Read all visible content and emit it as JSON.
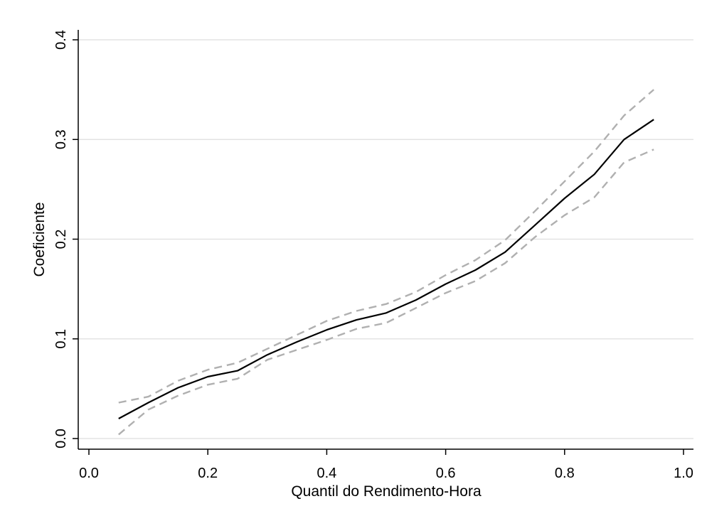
{
  "chart_data": {
    "type": "line",
    "title": "",
    "xlabel": "Quantil do Rendimento-Hora",
    "ylabel": "Coeficiente",
    "xlim": [
      0.0,
      1.0
    ],
    "ylim": [
      0.0,
      0.4
    ],
    "xticks": [
      "0.0",
      "0.2",
      "0.4",
      "0.6",
      "0.8",
      "1.0"
    ],
    "yticks": [
      "0.0",
      "0.1",
      "0.2",
      "0.3",
      "0.4"
    ],
    "grid": "horizontal",
    "legend": "none",
    "x": [
      0.05,
      0.1,
      0.15,
      0.2,
      0.25,
      0.3,
      0.35,
      0.4,
      0.45,
      0.5,
      0.55,
      0.6,
      0.65,
      0.7,
      0.75,
      0.8,
      0.85,
      0.9,
      0.95
    ],
    "series": [
      {
        "role": "estimate",
        "style": "solid",
        "color": "#000000",
        "values": [
          0.02,
          0.036,
          0.051,
          0.062,
          0.068,
          0.084,
          0.097,
          0.109,
          0.119,
          0.126,
          0.139,
          0.155,
          0.169,
          0.187,
          0.214,
          0.241,
          0.265,
          0.3,
          0.32
        ]
      },
      {
        "role": "upper-bound",
        "style": "dashed",
        "color": "#b0b0b0",
        "values": [
          0.036,
          0.042,
          0.058,
          0.069,
          0.076,
          0.09,
          0.104,
          0.118,
          0.128,
          0.135,
          0.147,
          0.164,
          0.179,
          0.199,
          0.228,
          0.258,
          0.288,
          0.324,
          0.35
        ]
      },
      {
        "role": "lower-bound",
        "style": "dashed",
        "color": "#b0b0b0",
        "values": [
          0.004,
          0.029,
          0.043,
          0.054,
          0.06,
          0.079,
          0.089,
          0.099,
          0.11,
          0.116,
          0.131,
          0.146,
          0.158,
          0.176,
          0.202,
          0.224,
          0.242,
          0.277,
          0.29
        ]
      }
    ]
  }
}
